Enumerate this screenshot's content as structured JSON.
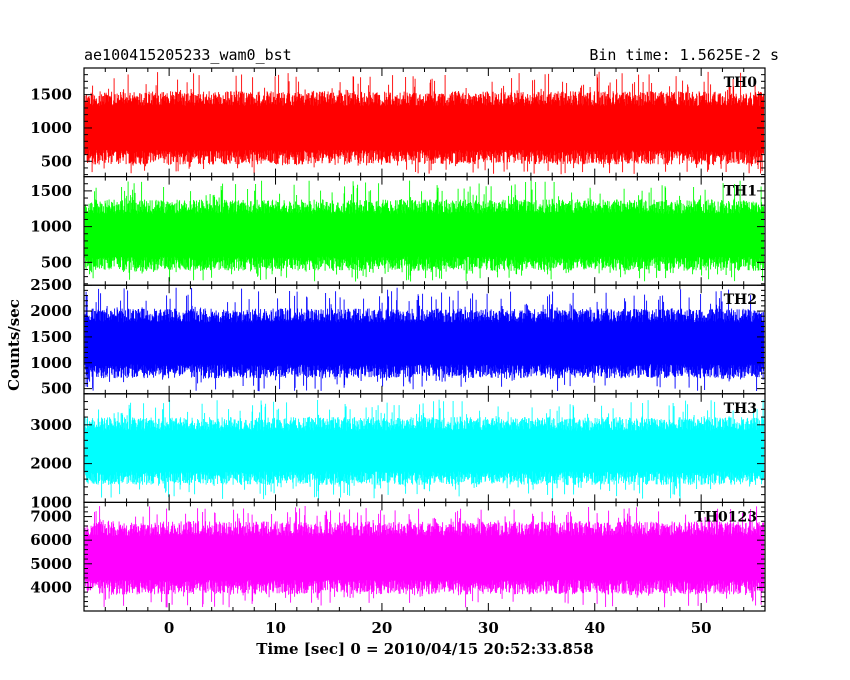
{
  "chart_data": {
    "type": "line",
    "title_left": "ae100415205233_wam0_bst",
    "title_right": "Bin time: 1.5625E-2 s",
    "xlabel": "Time [sec] 0 = 2010/04/15 20:52:33.858",
    "ylabel": "Counts/sec",
    "xlim": [
      -8,
      56
    ],
    "x_ticks": [
      0,
      10,
      20,
      30,
      40,
      50
    ],
    "x_data_range": [
      -7.9,
      55.9
    ],
    "panels": [
      {
        "name": "TH0",
        "color": "#ff0000",
        "ylim": [
          270,
          1900
        ],
        "y_ticks": [
          500,
          1000,
          1500
        ],
        "baseline_range": [
          450,
          1550
        ],
        "spike_max": 1850,
        "spike_min": 300
      },
      {
        "name": "TH1",
        "color": "#00ff00",
        "ylim": [
          180,
          1700
        ],
        "y_ticks": [
          500,
          1000,
          1500
        ],
        "baseline_range": [
          380,
          1380
        ],
        "spike_max": 1650,
        "spike_min": 230
      },
      {
        "name": "TH2",
        "color": "#0000ff",
        "ylim": [
          400,
          2500
        ],
        "y_ticks": [
          500,
          1000,
          1500,
          2000,
          2500
        ],
        "baseline_range": [
          700,
          2050
        ],
        "spike_max": 2450,
        "spike_min": 450
      },
      {
        "name": "TH3",
        "color": "#00ffff",
        "ylim": [
          1000,
          3800
        ],
        "y_ticks": [
          1000,
          2000,
          3000
        ],
        "baseline_range": [
          1450,
          3200
        ],
        "spike_max": 3650,
        "spike_min": 1080
      },
      {
        "name": "TH0123",
        "color": "#ff00ff",
        "ylim": [
          3000,
          7600
        ],
        "y_ticks": [
          4000,
          5000,
          6000,
          7000
        ],
        "baseline_range": [
          3700,
          6800
        ],
        "spike_max": 7450,
        "spike_min": 3150
      }
    ]
  }
}
